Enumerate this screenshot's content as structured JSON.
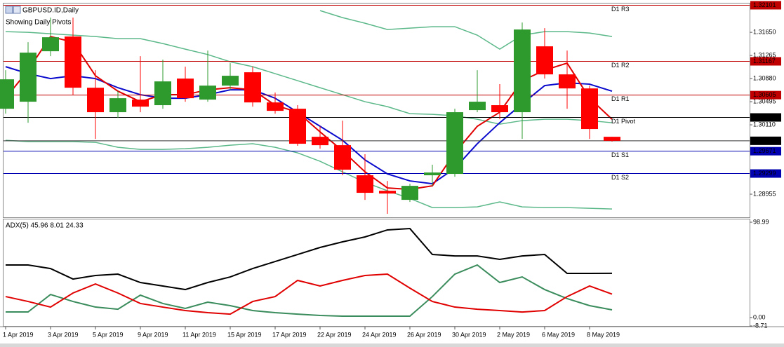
{
  "chart_data": [
    {
      "type": "candlestick",
      "title": "GBPUSD.ID,Daily",
      "subtitle": "Showing Daily Pivots",
      "categories": [
        "1 Apr 2019",
        null,
        "3 Apr 2019",
        null,
        "5 Apr 2019",
        null,
        "9 Apr 2019",
        null,
        "11 Apr 2019",
        null,
        "15 Apr 2019",
        null,
        "17 Apr 2019",
        null,
        "22 Apr 2019",
        null,
        "24 Apr 2019",
        null,
        "26 Apr 2019",
        null,
        "30 Apr 2019",
        null,
        "2 May 2019",
        null,
        "6 May 2019",
        null,
        "8 May 2019",
        null
      ],
      "open": [
        1.30378,
        1.30495,
        1.31335,
        1.3158,
        1.30728,
        1.3032,
        1.3053,
        1.30437,
        1.3088,
        1.3053,
        1.30763,
        1.30985,
        1.30483,
        1.30378,
        1.29911,
        1.29771,
        1.2927,
        1.29012,
        1.28861,
        1.2927,
        1.29293,
        1.30355,
        1.30437,
        1.3032,
        1.31417,
        1.3095,
        1.30716,
        1.29911
      ],
      "high": [
        1.3102,
        1.31487,
        1.31895,
        1.31895,
        1.3102,
        1.3067,
        1.31253,
        1.31195,
        1.31078,
        1.31347,
        1.31137,
        1.31078,
        1.30647,
        1.30437,
        1.30086,
        1.3018,
        1.2962,
        1.29176,
        1.29129,
        1.29445,
        1.30378,
        1.3102,
        1.30787,
        1.31814,
        1.3172,
        1.31347,
        1.30763,
        1.29911
      ],
      "low": [
        1.30296,
        1.30145,
        1.31253,
        1.30612,
        1.29876,
        1.30226,
        1.3032,
        1.30378,
        1.30495,
        1.30495,
        1.30693,
        1.30413,
        1.30296,
        1.2976,
        1.29713,
        1.2927,
        1.28861,
        1.28628,
        1.28826,
        1.29094,
        1.29246,
        1.3032,
        1.30203,
        1.29876,
        1.3088,
        1.30378,
        1.29876,
        1.2983
      ],
      "close": [
        1.30868,
        1.31312,
        1.31568,
        1.30728,
        1.3032,
        1.30553,
        1.30413,
        1.30833,
        1.30553,
        1.30763,
        1.30927,
        1.30483,
        1.30343,
        1.29795,
        1.29771,
        1.29363,
        1.28978,
        1.28966,
        1.29094,
        1.29316,
        1.3032,
        1.30495,
        1.3032,
        1.31697,
        1.3095,
        1.30716,
        1.3004,
        1.29844
      ],
      "up_color": "#2e9a2e",
      "down_color": "#ff0000",
      "lines": [
        {
          "color": "#5bb889",
          "values": [
            null,
            null,
            null,
            null,
            null,
            null,
            null,
            null,
            null,
            null,
            null,
            null,
            null,
            null,
            1.32012,
            1.31895,
            1.31802,
            1.31697,
            1.3172,
            1.31744,
            1.31744,
            1.31603,
            1.3137,
            1.31603,
            1.31662,
            1.31662,
            1.31638,
            1.3158
          ]
        },
        {
          "color": "#5bb889",
          "values": [
            1.31662,
            1.3165,
            1.31627,
            1.31603,
            1.3158,
            1.31545,
            1.31545,
            1.31463,
            1.3137,
            1.3128,
            1.3116,
            1.31078,
            1.30962,
            1.30845,
            1.30728,
            1.30612,
            1.30495,
            1.30413,
            1.30296,
            1.30285,
            1.30261,
            1.30203,
            1.30121,
            1.3018,
            1.30203,
            1.30203,
            1.3018,
            1.30145
          ]
        },
        {
          "color": "#5bb889",
          "values": [
            1.29853,
            1.2983,
            1.2983,
            1.2983,
            1.29818,
            1.29736,
            1.29701,
            1.29701,
            1.29713,
            1.29736,
            1.29771,
            1.29795,
            1.29736,
            1.29643,
            1.29503,
            1.29328,
            1.29153,
            1.29012,
            1.28884,
            1.28732,
            1.28732,
            1.28744,
            1.28826,
            1.28744,
            1.28732,
            1.28732,
            1.28721,
            1.28709
          ]
        },
        {
          "color": "#0a0acd",
          "values": [
            1.31078,
            1.30962,
            1.3088,
            1.30927,
            1.3088,
            1.30728,
            1.30612,
            1.30553,
            1.30553,
            1.30612,
            1.30693,
            1.30693,
            1.30553,
            1.3032,
            1.30086,
            1.29853,
            1.29526,
            1.29293,
            1.29176,
            1.29129,
            1.29386,
            1.29795,
            1.30145,
            1.3046,
            1.30763,
            1.3081,
            1.30787,
            1.3067
          ]
        },
        {
          "color": "#e00000",
          "values": [
            1.30553,
            1.3102,
            1.3158,
            1.31487,
            1.30927,
            1.3067,
            1.30495,
            1.30612,
            1.30612,
            1.30693,
            1.30728,
            1.30693,
            1.30437,
            1.3032,
            1.29993,
            1.29678,
            1.29328,
            1.29059,
            1.29036,
            1.29094,
            1.29643,
            1.30086,
            1.3032,
            1.30845,
            1.3102,
            1.31137,
            1.30553,
            1.30203
          ]
        }
      ],
      "levels": [
        {
          "label": "D1 R3",
          "value": 1.32101,
          "color": "#c00000"
        },
        {
          "label": "D1 R2",
          "value": 1.31167,
          "color": "#c00000"
        },
        {
          "label": "D1 R1",
          "value": 1.30605,
          "color": "#c00000"
        },
        {
          "label": "D1 Pivot",
          "value": 1.30233,
          "color": "#000000"
        },
        {
          "label": "D1 S1",
          "value": 1.29671,
          "color": "#0000b0"
        },
        {
          "label": "D1 S2",
          "value": 1.29299,
          "color": "#0000b0"
        }
      ],
      "last_price": 1.29844,
      "ylim": [
        1.2857,
        1.3213
      ],
      "yticks": [
        {
          "value": 1.3165,
          "label": "1.31650"
        },
        1.31265,
        {
          "value": 1.3088,
          "label": "1.30880"
        },
        1.30495,
        {
          "value": 1.3011,
          "label": "1.30110"
        },
        1.28955
      ]
    },
    {
      "type": "line",
      "title": "ADX(5) 45.96 8.01 24.33",
      "series": [
        {
          "color": "#000000",
          "values": [
            54.6,
            54.6,
            50.9,
            40.0,
            43.7,
            45.1,
            36.4,
            32.8,
            29.1,
            36.4,
            42.2,
            50.9,
            58.2,
            65.5,
            72.8,
            78.6,
            83.7,
            91.0,
            92.4,
            65.5,
            64.0,
            64.0,
            60.4,
            64.0,
            65.5,
            45.9,
            45.9,
            45.96
          ]
        },
        {
          "color": "#3a8c5c",
          "values": [
            5.8,
            5.8,
            24.0,
            16.7,
            10.9,
            8.7,
            23.3,
            14.6,
            9.5,
            16.0,
            12.4,
            7.3,
            5.1,
            3.6,
            2.2,
            1.5,
            1.5,
            1.5,
            1.5,
            21.8,
            45.1,
            54.6,
            36.4,
            42.2,
            29.1,
            19.7,
            12.4,
            8.01
          ]
        },
        {
          "color": "#e00000",
          "values": [
            21.8,
            16.7,
            10.9,
            25.5,
            34.9,
            25.5,
            14.6,
            10.9,
            7.3,
            5.1,
            3.6,
            16.7,
            21.8,
            38.6,
            32.8,
            38.6,
            43.7,
            45.1,
            30.6,
            16.7,
            10.9,
            8.7,
            7.3,
            5.8,
            7.3,
            21.8,
            32.8,
            24.33
          ]
        }
      ],
      "ylim": [
        -8.71,
        98.99
      ],
      "yticks": [
        98.99,
        {
          "value": 0,
          "label": "0.00"
        },
        -8.71
      ]
    }
  ]
}
